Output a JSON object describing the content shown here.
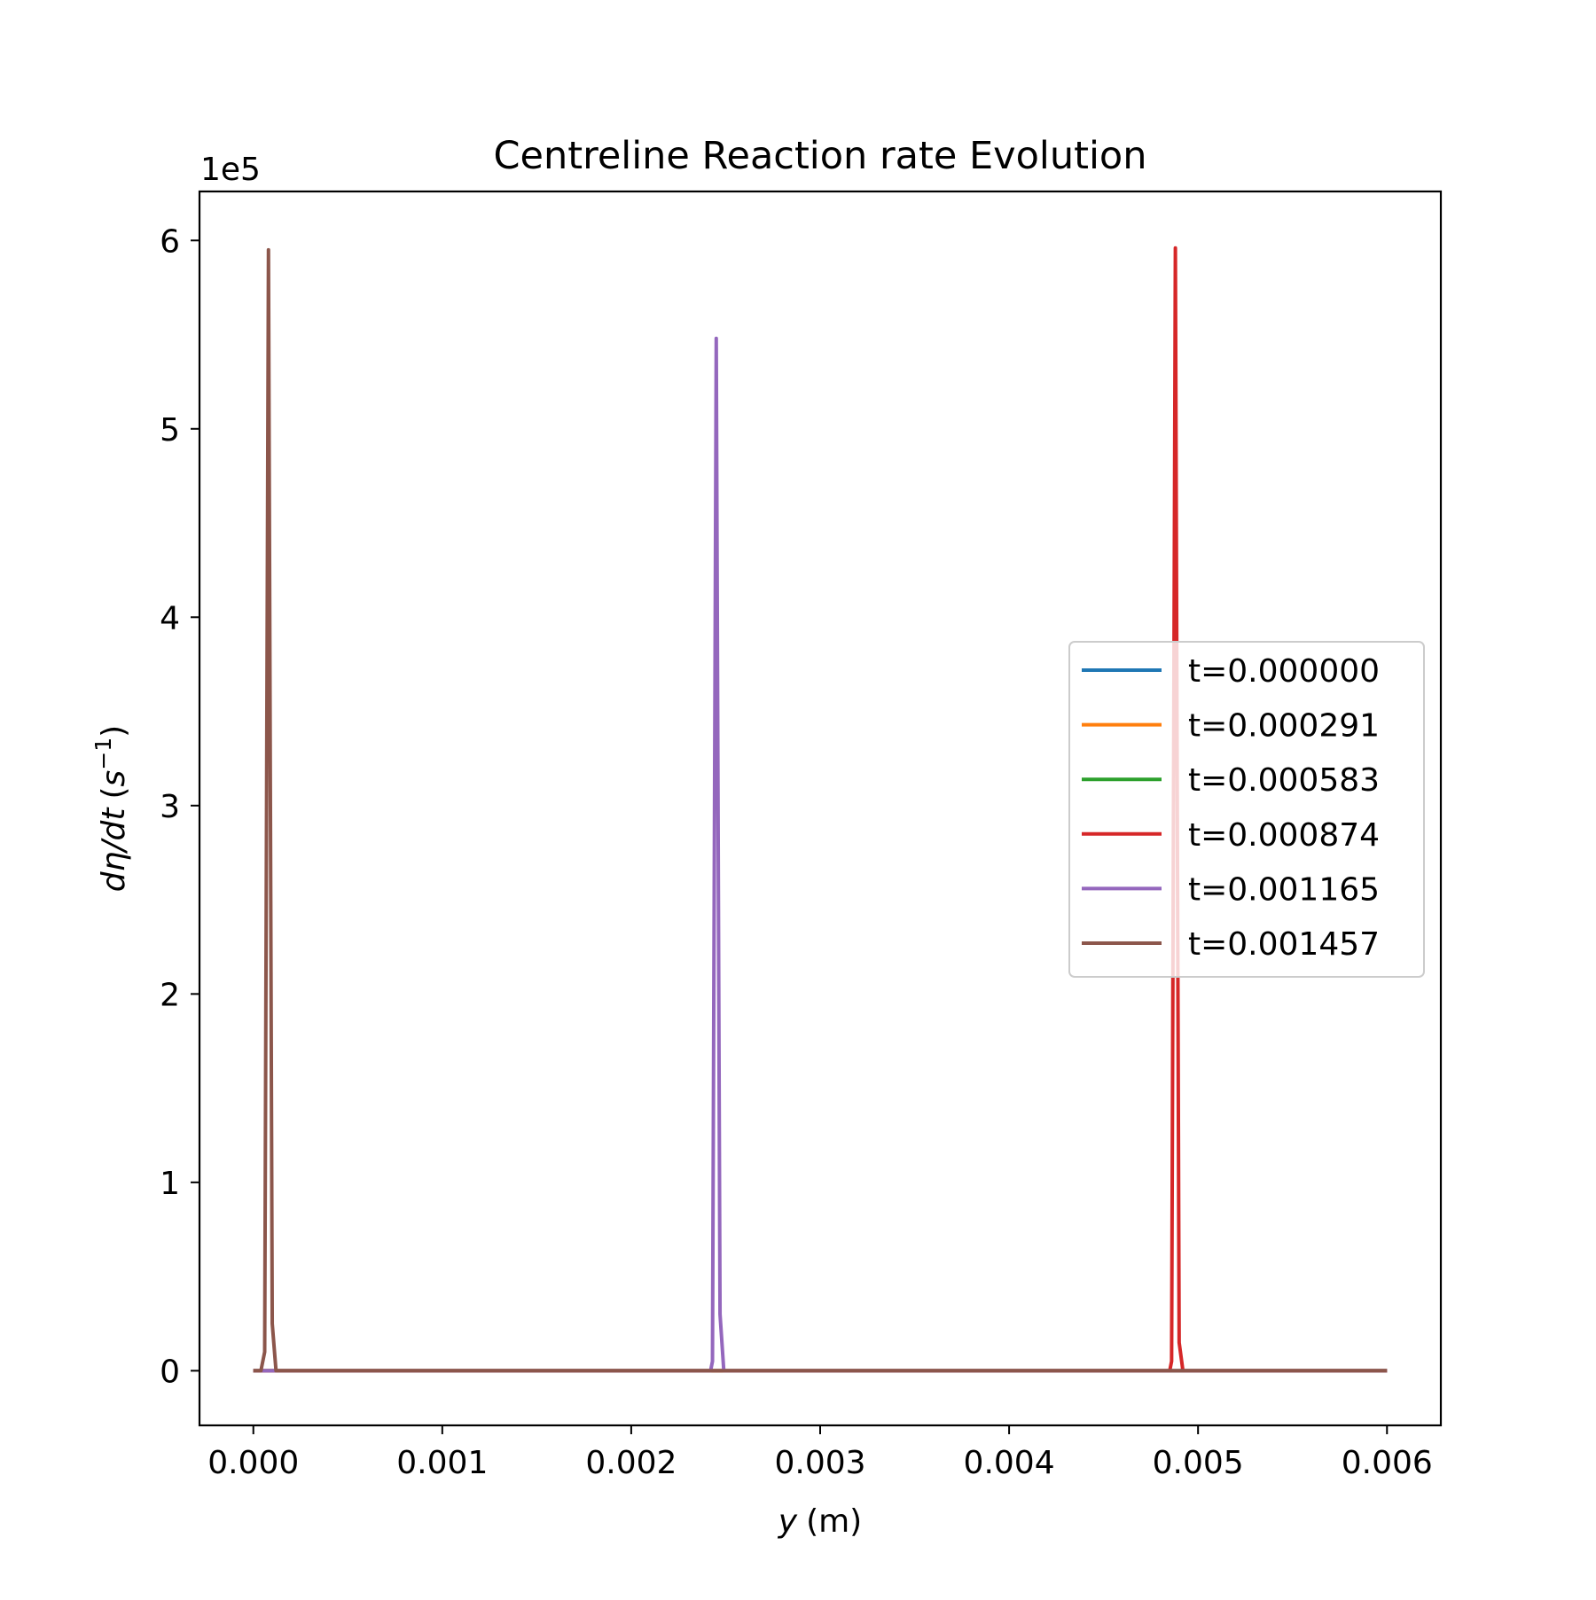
{
  "chart_data": {
    "type": "line",
    "title": "Centreline Reaction rate Evolution",
    "xlabel": "y (m)",
    "xlabel_var": "y",
    "xlabel_unit": "(m)",
    "ylabel": "dη/dt (s⁻¹)",
    "ylabel_var": "dη/dt",
    "ylabel_unit_open": "(",
    "ylabel_unit_base": "s",
    "ylabel_unit_exp": "−1",
    "ylabel_unit_close": ")",
    "y_offset_label": "1e5",
    "xlim": [
      -0.000285,
      0.006285
    ],
    "ylim": [
      -0.29,
      6.26
    ],
    "y_scale_factor": 100000,
    "x_ticks": [
      0.0,
      0.001,
      0.002,
      0.003,
      0.004,
      0.005,
      0.006
    ],
    "x_tick_labels": [
      "0.000",
      "0.001",
      "0.002",
      "0.003",
      "0.004",
      "0.005",
      "0.006"
    ],
    "y_ticks": [
      0,
      1,
      2,
      3,
      4,
      5,
      6
    ],
    "y_tick_labels": [
      "0",
      "1",
      "2",
      "3",
      "4",
      "5",
      "6"
    ],
    "grid": false,
    "legend_position": "center-right",
    "series": [
      {
        "name": "t=0.000000",
        "color": "#1f77b4",
        "x": [
          0.0,
          0.006
        ],
        "y": [
          0,
          0
        ]
      },
      {
        "name": "t=0.000291",
        "color": "#ff7f0e",
        "x": [
          0.0,
          0.006
        ],
        "y": [
          0,
          0
        ]
      },
      {
        "name": "t=0.000583",
        "color": "#2ca02c",
        "x": [
          0.0,
          0.006
        ],
        "y": [
          0,
          0
        ]
      },
      {
        "name": "t=0.000874",
        "color": "#d62728",
        "x": [
          0.0,
          0.00485,
          0.00486,
          0.00488,
          0.0049,
          0.00492,
          0.006
        ],
        "y": [
          0,
          0,
          0.05,
          5.96,
          0.15,
          0,
          0
        ]
      },
      {
        "name": "t=0.001165",
        "color": "#9467bd",
        "x": [
          0.0,
          0.00242,
          0.00243,
          0.00245,
          0.00247,
          0.00249,
          0.006
        ],
        "y": [
          0,
          0,
          0.05,
          5.48,
          0.3,
          0,
          0
        ]
      },
      {
        "name": "t=0.001457",
        "color": "#8c564b",
        "x": [
          0.0,
          4e-05,
          6e-05,
          8e-05,
          0.0001,
          0.00012,
          0.006
        ],
        "y": [
          0,
          0,
          0.1,
          5.95,
          0.25,
          0,
          0
        ]
      }
    ]
  }
}
